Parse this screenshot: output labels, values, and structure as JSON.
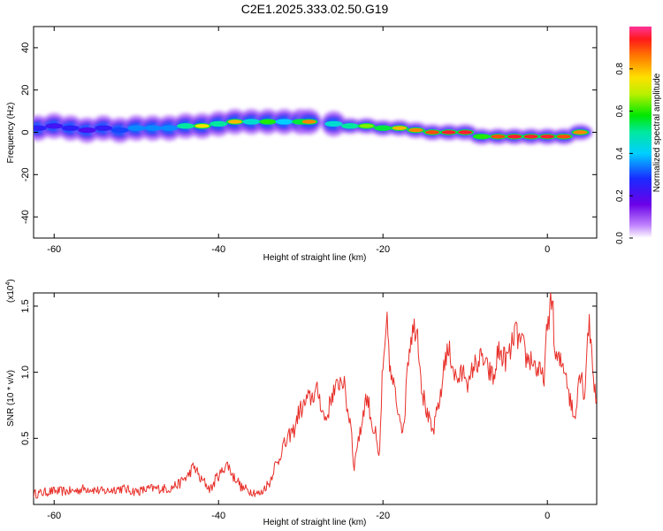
{
  "title": "C2E1.2025.333.02.50.G19",
  "chart_data": [
    {
      "type": "heatmap",
      "xlabel": "Height of straight line (km)",
      "ylabel": "Frequency (Hz)",
      "xlim": [
        -62.5,
        6
      ],
      "ylim": [
        -50,
        50
      ],
      "xticks": [
        -60,
        -40,
        -20,
        0
      ],
      "xtick_labels": [
        "-60",
        "-40",
        "-20",
        "0"
      ],
      "yticks": [
        -40,
        -20,
        0,
        20,
        40
      ],
      "ytick_labels": [
        "-40",
        "-20",
        "0",
        "20",
        "40"
      ],
      "colorbar": {
        "label": "Normalized spectral amplitude",
        "range": [
          0,
          1
        ],
        "ticks": [
          0.0,
          0.2,
          0.4,
          0.6,
          0.8
        ],
        "tick_labels": [
          "0.0",
          "0.2",
          "0.4",
          "0.6",
          "0.8"
        ]
      },
      "ridge": [
        {
          "x": -62,
          "y": 2,
          "amp": 0.25
        },
        {
          "x": -60,
          "y": 3,
          "amp": 0.22
        },
        {
          "x": -58,
          "y": 2,
          "amp": 0.25
        },
        {
          "x": -56,
          "y": 1,
          "amp": 0.2
        },
        {
          "x": -54,
          "y": 2,
          "amp": 0.24
        },
        {
          "x": -52,
          "y": 1,
          "amp": 0.3
        },
        {
          "x": -50,
          "y": 2,
          "amp": 0.35
        },
        {
          "x": -48,
          "y": 2,
          "amp": 0.35
        },
        {
          "x": -46,
          "y": 2,
          "amp": 0.35
        },
        {
          "x": -44,
          "y": 3,
          "amp": 0.5
        },
        {
          "x": -42,
          "y": 3,
          "amp": 0.75
        },
        {
          "x": -40,
          "y": 4,
          "amp": 0.5
        },
        {
          "x": -38,
          "y": 5,
          "amp": 0.8
        },
        {
          "x": -36,
          "y": 5,
          "amp": 0.45
        },
        {
          "x": -34,
          "y": 5,
          "amp": 0.6
        },
        {
          "x": -32,
          "y": 5,
          "amp": 0.4
        },
        {
          "x": -30,
          "y": 5,
          "amp": 0.55
        },
        {
          "x": -29,
          "y": 5,
          "amp": 0.85
        },
        {
          "x": -26,
          "y": 4,
          "amp": 0.45
        },
        {
          "x": -24,
          "y": 3,
          "amp": 0.5
        },
        {
          "x": -22,
          "y": 3,
          "amp": 0.65
        },
        {
          "x": -20,
          "y": 2,
          "amp": 0.55
        },
        {
          "x": -18,
          "y": 2,
          "amp": 0.8
        },
        {
          "x": -16,
          "y": 1,
          "amp": 0.85
        },
        {
          "x": -14,
          "y": 0,
          "amp": 0.9
        },
        {
          "x": -12,
          "y": 0,
          "amp": 0.95
        },
        {
          "x": -10,
          "y": 0,
          "amp": 0.95
        },
        {
          "x": -8,
          "y": -2,
          "amp": 0.6
        },
        {
          "x": -6,
          "y": -2,
          "amp": 0.9
        },
        {
          "x": -4,
          "y": -2,
          "amp": 0.95
        },
        {
          "x": -2,
          "y": -2,
          "amp": 0.95
        },
        {
          "x": 0,
          "y": -2,
          "amp": 0.95
        },
        {
          "x": 2,
          "y": -2,
          "amp": 0.9
        },
        {
          "x": 4,
          "y": 0,
          "amp": 0.85
        }
      ]
    },
    {
      "type": "line",
      "xlabel": "Height of straight line (km)",
      "ylabel": "SNR (10 * v/v)",
      "y_multiplier": "(x10",
      "y_multiplier_exp": "4",
      "xlim": [
        -62.5,
        6
      ],
      "ylim": [
        0.0,
        1.6
      ],
      "xticks": [
        -60,
        -40,
        -20,
        0
      ],
      "xtick_labels": [
        "-60",
        "-40",
        "-20",
        "0"
      ],
      "yticks": [
        0.5,
        1.0,
        1.5
      ],
      "ytick_labels": [
        "0.5",
        "1.0",
        "1.5"
      ],
      "color": "#e8302a",
      "series": [
        {
          "name": "SNR",
          "x": [
            -62.5,
            -60,
            -58,
            -56,
            -54,
            -52,
            -50,
            -48,
            -46,
            -45,
            -44,
            -43,
            -42,
            -41,
            -40,
            -39,
            -38,
            -37,
            -36,
            -35,
            -34,
            -33,
            -32,
            -31,
            -30,
            -29,
            -28,
            -27,
            -26,
            -25,
            -24,
            -23.5,
            -23,
            -22,
            -21,
            -20.5,
            -20,
            -19.5,
            -19,
            -18,
            -17.5,
            -17,
            -16.5,
            -16,
            -15,
            -14.5,
            -14,
            -13,
            -12.5,
            -12,
            -11,
            -10,
            -9.5,
            -9,
            -8,
            -7,
            -6.5,
            -6,
            -5,
            -4.5,
            -4,
            -3,
            -2.5,
            -2,
            -1,
            -0.5,
            0,
            0.5,
            1,
            2,
            3,
            3.2,
            4,
            4.5,
            5,
            6
          ],
          "y": [
            0.08,
            0.1,
            0.1,
            0.12,
            0.1,
            0.12,
            0.1,
            0.12,
            0.12,
            0.15,
            0.2,
            0.28,
            0.18,
            0.12,
            0.22,
            0.3,
            0.2,
            0.12,
            0.1,
            0.08,
            0.15,
            0.3,
            0.45,
            0.55,
            0.72,
            0.8,
            0.85,
            0.65,
            0.85,
            0.95,
            0.65,
            0.3,
            0.5,
            0.8,
            0.55,
            0.35,
            1.0,
            1.35,
            0.95,
            0.7,
            0.55,
            1.1,
            1.3,
            1.35,
            0.8,
            0.65,
            0.55,
            0.8,
            1.1,
            1.15,
            0.95,
            1.0,
            0.9,
            1.05,
            1.1,
            1.0,
            0.95,
            1.15,
            1.1,
            1.15,
            1.3,
            1.2,
            1.1,
            1.1,
            1.0,
            0.95,
            1.3,
            1.6,
            1.1,
            1.05,
            0.75,
            0.65,
            1.0,
            0.85,
            1.35,
            0.8
          ]
        }
      ]
    }
  ]
}
